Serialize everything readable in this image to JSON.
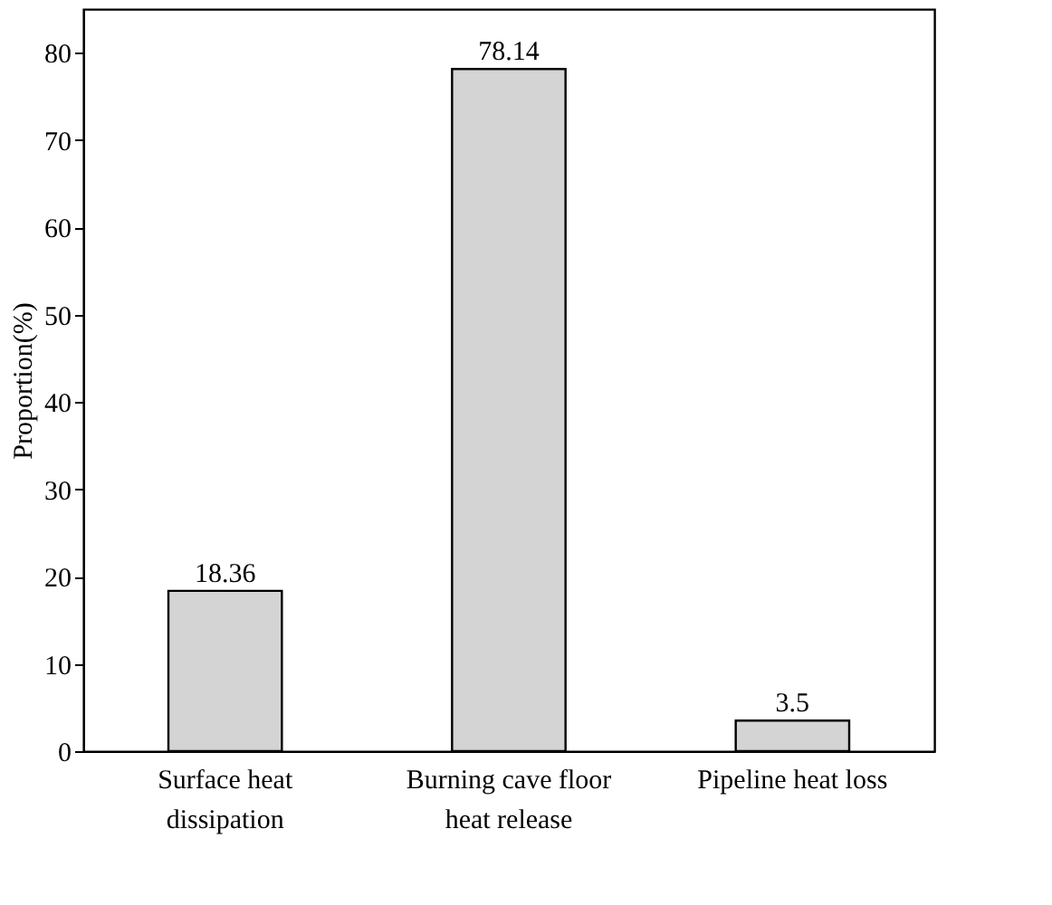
{
  "chart_data": {
    "type": "bar",
    "ylabel": "Proportion(%)",
    "categories": [
      "Surface heat dissipation",
      "Burning cave floor heat release",
      "Pipeline heat loss"
    ],
    "values": [
      18.36,
      78.14,
      3.5
    ],
    "color": "#d4d4d4",
    "ylim": [
      0,
      85
    ],
    "yticks": [
      0,
      10,
      20,
      30,
      40,
      50,
      60,
      70,
      80
    ],
    "data_labels": true,
    "grid": false
  }
}
